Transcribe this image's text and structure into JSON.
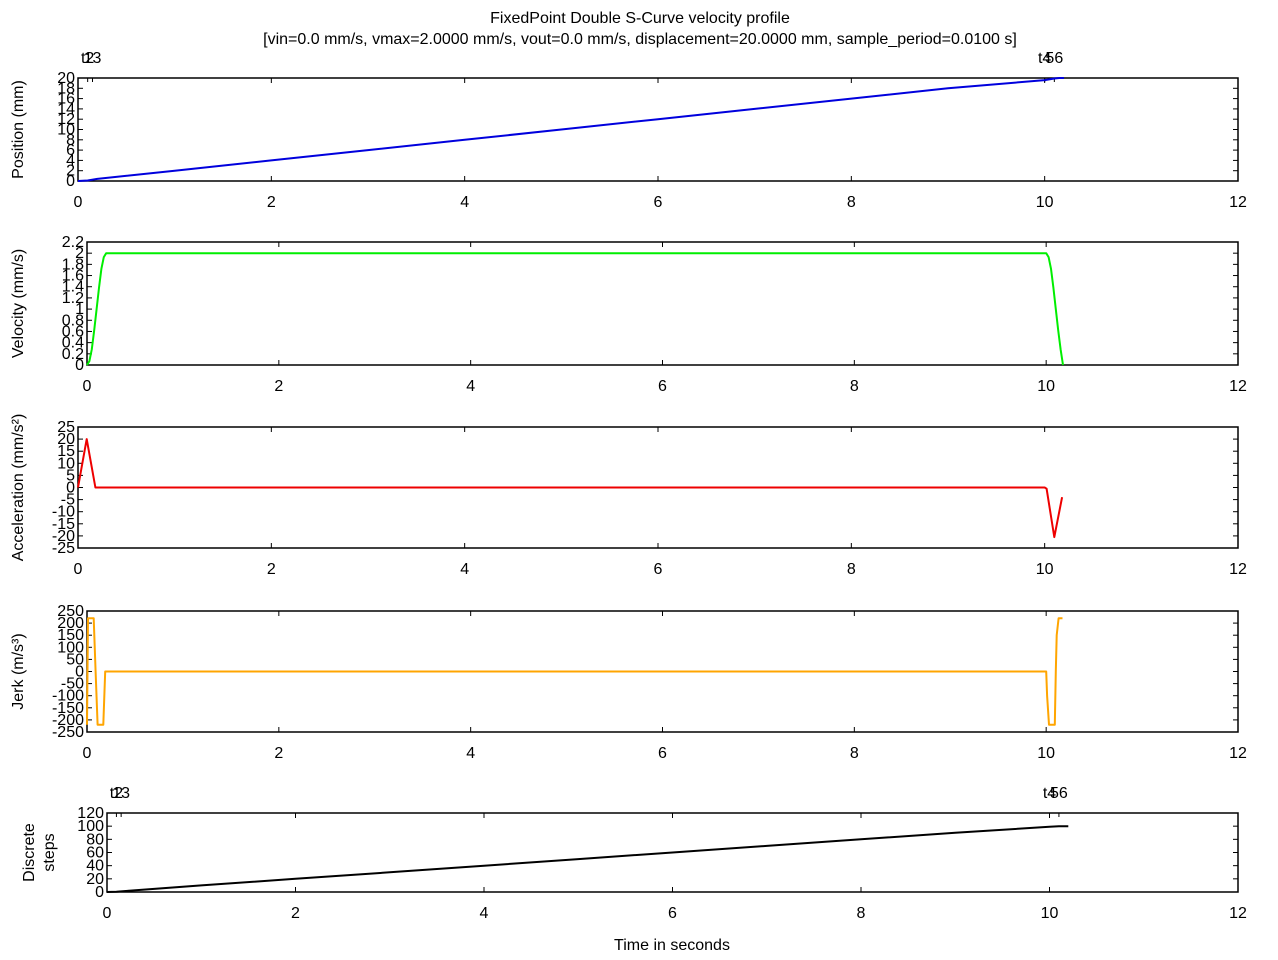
{
  "figure": {
    "title_line1": "FixedPoint Double S-Curve velocity profile",
    "title_line2": "[vin=0.0 mm/s, vmax=2.0000 mm/s, vout=0.0 mm/s, displacement=20.0000 mm, sample_period=0.0100 s]",
    "xlabel": "Time in seconds"
  },
  "chart_data": [
    {
      "type": "line",
      "name": "position",
      "ylabel": "Position (mm)",
      "xlim": [
        0,
        12
      ],
      "ylim": [
        0,
        20
      ],
      "xticks": [
        0,
        2,
        4,
        6,
        8,
        10,
        12
      ],
      "yticks": [
        0,
        2,
        4,
        6,
        8,
        10,
        12,
        14,
        16,
        18,
        20
      ],
      "color": "#0000dd",
      "top_labels": [
        {
          "at": 0.1,
          "text": "t2"
        },
        {
          "at": 0.15,
          "text": "13"
        },
        {
          "at": 10.0,
          "text": "t4"
        },
        {
          "at": 10.1,
          "text": "56"
        }
      ],
      "x": [
        0,
        0.05,
        0.1,
        0.2,
        1,
        2,
        3,
        4,
        5,
        6,
        7,
        8,
        9,
        10,
        10.1,
        10.15,
        10.2
      ],
      "y": [
        0,
        0.03,
        0.1,
        0.4,
        2.0,
        4.0,
        6.0,
        8.0,
        10.0,
        12.0,
        14.0,
        16.0,
        18.0,
        19.6,
        19.9,
        20,
        20
      ]
    },
    {
      "type": "line",
      "name": "velocity",
      "ylabel": "Velocity (mm/s)",
      "xlim": [
        0,
        12
      ],
      "ylim": [
        0,
        2.2
      ],
      "xticks": [
        0,
        2,
        4,
        6,
        8,
        10,
        12
      ],
      "yticks": [
        0,
        0.2,
        0.4,
        0.6,
        0.8,
        1,
        1.2,
        1.4,
        1.6,
        1.8,
        2,
        2.2
      ],
      "color": "#00ee00",
      "x": [
        0,
        0.025,
        0.05,
        0.075,
        0.1,
        0.125,
        0.15,
        0.175,
        0.2,
        10.0,
        10.025,
        10.05,
        10.075,
        10.1,
        10.125,
        10.15,
        10.175
      ],
      "y": [
        0,
        0.07,
        0.28,
        0.62,
        1.0,
        1.38,
        1.72,
        1.93,
        2.0,
        2.0,
        1.93,
        1.72,
        1.38,
        1.0,
        0.62,
        0.28,
        0.0
      ]
    },
    {
      "type": "line",
      "name": "acceleration",
      "ylabel": "Acceleration (mm/s²)",
      "xlim": [
        0,
        12
      ],
      "ylim": [
        -25,
        25
      ],
      "xticks": [
        0,
        2,
        4,
        6,
        8,
        10,
        12
      ],
      "yticks": [
        -25,
        -20,
        -15,
        -10,
        -5,
        0,
        5,
        10,
        15,
        20,
        25
      ],
      "color": "#ee0000",
      "x": [
        0,
        0.09,
        0.18,
        0.2,
        10.0,
        10.02,
        10.1,
        10.18
      ],
      "y": [
        0,
        20,
        0,
        0,
        0,
        -0.5,
        -20.5,
        -4
      ]
    },
    {
      "type": "line",
      "name": "jerk",
      "ylabel": "Jerk (m/s³)",
      "xlim": [
        0,
        12
      ],
      "ylim": [
        -250,
        250
      ],
      "xticks": [
        0,
        2,
        4,
        6,
        8,
        10,
        12
      ],
      "yticks": [
        -250,
        -200,
        -150,
        -100,
        -50,
        0,
        50,
        100,
        150,
        200,
        250
      ],
      "color": "#ffa500",
      "x": [
        0,
        0.01,
        0.05,
        0.07,
        0.09,
        0.11,
        0.15,
        0.17,
        0.19,
        10.0,
        10.01,
        10.03,
        10.07,
        10.09,
        10.1,
        10.11,
        10.13,
        10.17
      ],
      "y": [
        -220,
        220,
        220,
        220,
        0,
        -220,
        -220,
        -220,
        0,
        0,
        -100,
        -220,
        -220,
        -220,
        0,
        150,
        220,
        220
      ]
    },
    {
      "type": "line",
      "name": "discrete_steps",
      "ylabel_line1": "Discrete",
      "ylabel_line2": "steps",
      "xlim": [
        0,
        12
      ],
      "ylim": [
        0,
        120
      ],
      "xticks": [
        0,
        2,
        4,
        6,
        8,
        10,
        12
      ],
      "yticks": [
        0,
        20,
        40,
        60,
        80,
        100,
        120
      ],
      "color": "#000000",
      "top_labels": [
        {
          "at": 0.1,
          "text": "t2"
        },
        {
          "at": 0.15,
          "text": "13"
        },
        {
          "at": 10.0,
          "text": "t4"
        },
        {
          "at": 10.1,
          "text": "56"
        }
      ],
      "x": [
        0,
        0.1,
        0.2,
        1,
        2,
        3,
        4,
        5,
        6,
        7,
        8,
        9,
        10,
        10.1,
        10.2
      ],
      "y": [
        0,
        0.5,
        1.5,
        10,
        20,
        30,
        40,
        50,
        60,
        70,
        80,
        90,
        99,
        100,
        100
      ]
    }
  ]
}
